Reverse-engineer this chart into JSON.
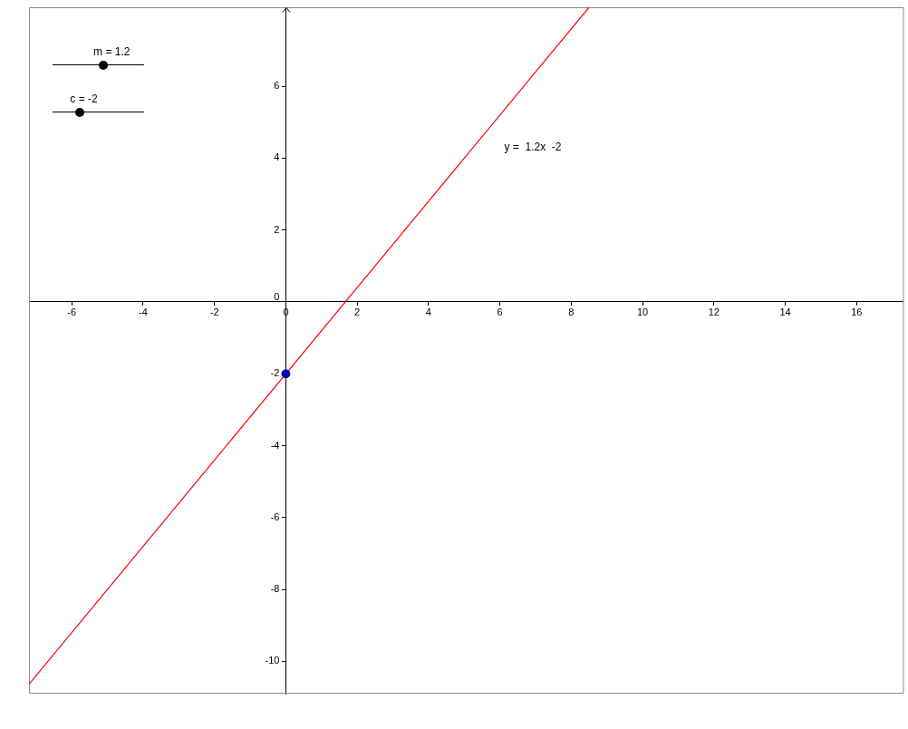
{
  "chart_data": {
    "type": "line",
    "xlim": [
      -7.2,
      17.3
    ],
    "ylim": [
      -10.9,
      8.2
    ],
    "xticks": [
      -6,
      -4,
      -2,
      0,
      2,
      4,
      6,
      8,
      10,
      12,
      14,
      16
    ],
    "yticks": [
      -10,
      -8,
      -6,
      -4,
      -2,
      0,
      2,
      4,
      6
    ],
    "series": [
      {
        "name": "y =  1.2x  -2",
        "color": "#ff0000",
        "x": [
          -7.2,
          8.5
        ],
        "values": [
          -10.64,
          8.2
        ]
      },
      {
        "type": "scatter",
        "color": "#0a0aa8",
        "marker": "circle",
        "x": [
          0
        ],
        "values": [
          -2
        ]
      }
    ],
    "annotations": [
      "m = 1.2",
      "c = -2"
    ]
  }
}
